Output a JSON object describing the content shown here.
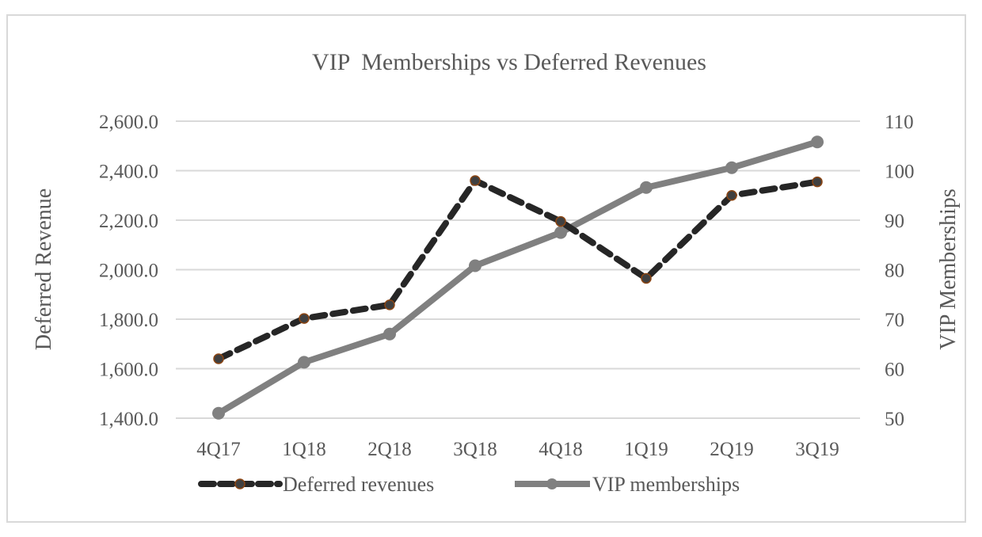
{
  "chart_data": {
    "type": "line",
    "title": "VIP  Memberships vs Deferred Revenues",
    "categories": [
      "4Q17",
      "1Q18",
      "2Q18",
      "3Q18",
      "4Q18",
      "1Q19",
      "2Q19",
      "3Q19"
    ],
    "series": [
      {
        "name": "Deferred revenues",
        "axis": "left",
        "style": "dashed",
        "color": "#262626",
        "marker_edge_color": "#8b4513",
        "values": [
          1640,
          1803,
          1858,
          2360,
          2195,
          1965,
          2300,
          2355
        ]
      },
      {
        "name": "VIP memberships",
        "axis": "right",
        "style": "solid",
        "color": "#808080",
        "values": [
          51.0,
          61.3,
          67.0,
          80.8,
          87.5,
          96.6,
          100.6,
          105.8
        ]
      }
    ],
    "y_left": {
      "label": "Deferred Revenue",
      "range": [
        1400,
        2600
      ],
      "ticks": [
        "1,400.0",
        "1,600.0",
        "1,800.0",
        "2,000.0",
        "2,200.0",
        "2,400.0",
        "2,600.0"
      ],
      "tick_values": [
        1400,
        1600,
        1800,
        2000,
        2200,
        2400,
        2600
      ]
    },
    "y_right": {
      "label": "VIP Memberships",
      "range": [
        50,
        110
      ],
      "ticks": [
        "50",
        "60",
        "70",
        "80",
        "90",
        "100",
        "110"
      ],
      "tick_values": [
        50,
        60,
        70,
        80,
        90,
        100,
        110
      ]
    },
    "grid": true,
    "gridline_color": "#d9d9d9",
    "legend_position": "bottom"
  }
}
